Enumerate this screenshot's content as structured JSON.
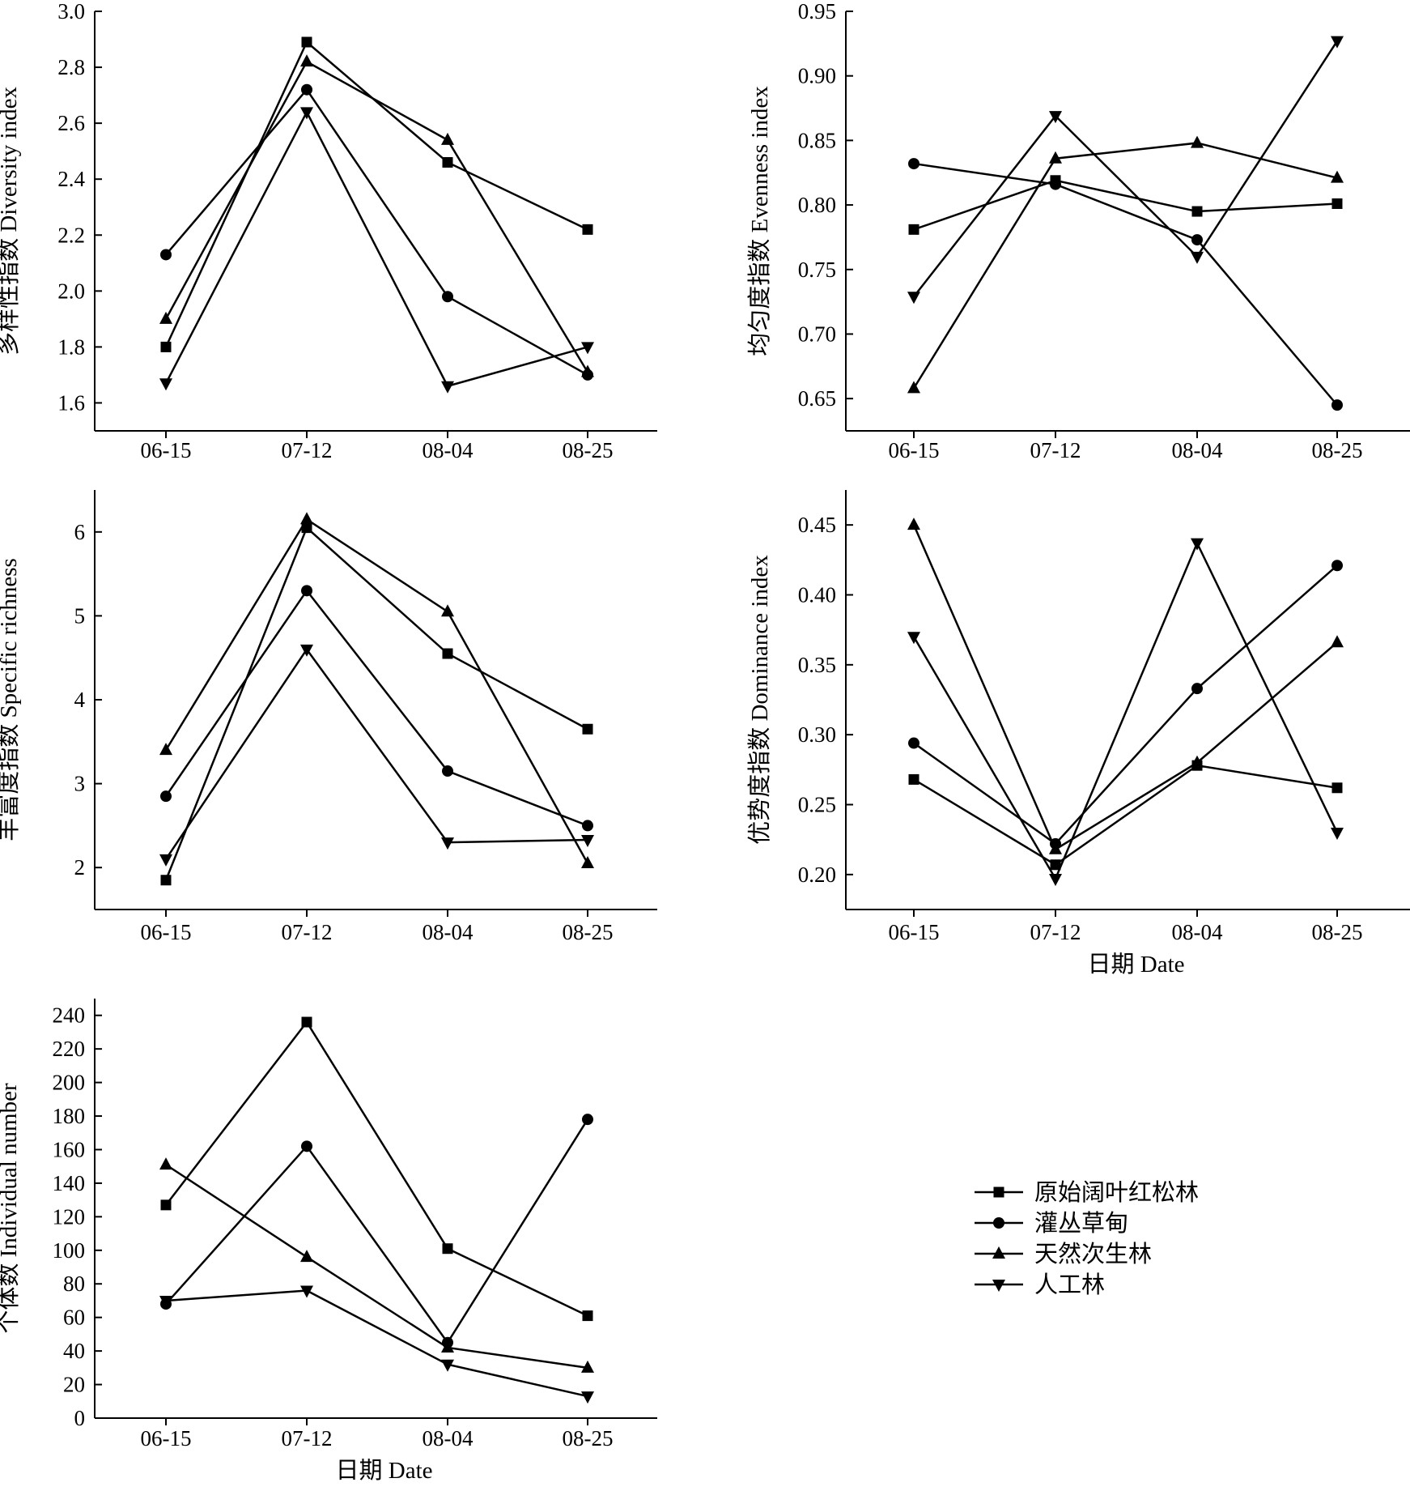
{
  "markers": [
    "square",
    "circle",
    "triangle-up",
    "triangle-down"
  ],
  "legend": {
    "position": "bottom-right",
    "entries": [
      "原始阔叶红松林",
      "灌丛草甸",
      "天然次生林",
      "人工林"
    ]
  },
  "chart_data": [
    {
      "type": "line",
      "categories": [
        "06-15",
        "07-12",
        "08-04",
        "08-25"
      ],
      "ylabel": "多样性指数 Diversity index",
      "xlabel": "",
      "ylim": [
        1.5,
        3.0
      ],
      "yticks": [
        1.6,
        1.8,
        2.0,
        2.2,
        2.4,
        2.6,
        2.8,
        3.0
      ],
      "ytick_decimals": 1,
      "series": [
        {
          "name": "原始阔叶红松林",
          "values": [
            1.8,
            2.89,
            2.46,
            2.22
          ]
        },
        {
          "name": "灌丛草甸",
          "values": [
            2.13,
            2.72,
            1.98,
            1.7
          ]
        },
        {
          "name": "天然次生林",
          "values": [
            1.9,
            2.82,
            2.54,
            1.71
          ]
        },
        {
          "name": "人工林",
          "values": [
            1.67,
            2.64,
            1.66,
            1.8
          ]
        }
      ]
    },
    {
      "type": "line",
      "categories": [
        "06-15",
        "07-12",
        "08-04",
        "08-25"
      ],
      "ylabel": "均匀度指数 Evenness index",
      "xlabel": "",
      "ylim": [
        0.625,
        0.95
      ],
      "yticks": [
        0.65,
        0.7,
        0.75,
        0.8,
        0.85,
        0.9,
        0.95
      ],
      "ytick_decimals": 2,
      "series": [
        {
          "name": "原始阔叶红松林",
          "values": [
            0.781,
            0.819,
            0.795,
            0.801
          ]
        },
        {
          "name": "灌丛草甸",
          "values": [
            0.832,
            0.816,
            0.773,
            0.645
          ]
        },
        {
          "name": "天然次生林",
          "values": [
            0.658,
            0.836,
            0.848,
            0.821
          ]
        },
        {
          "name": "人工林",
          "values": [
            0.729,
            0.869,
            0.76,
            0.927
          ]
        }
      ]
    },
    {
      "type": "line",
      "categories": [
        "06-15",
        "07-12",
        "08-04",
        "08-25"
      ],
      "ylabel": "丰富度指数 Specific richness",
      "xlabel": "",
      "ylim": [
        1.5,
        6.5
      ],
      "yticks": [
        2,
        3,
        4,
        5,
        6
      ],
      "ytick_decimals": 0,
      "series": [
        {
          "name": "原始阔叶红松林",
          "values": [
            1.85,
            6.05,
            4.55,
            3.65
          ]
        },
        {
          "name": "灌丛草甸",
          "values": [
            2.85,
            5.3,
            3.15,
            2.5
          ]
        },
        {
          "name": "天然次生林",
          "values": [
            3.4,
            6.15,
            5.05,
            2.05
          ]
        },
        {
          "name": "人工林",
          "values": [
            2.1,
            4.6,
            2.3,
            2.33
          ]
        }
      ]
    },
    {
      "type": "line",
      "categories": [
        "06-15",
        "07-12",
        "08-04",
        "08-25"
      ],
      "ylabel": "优势度指数 Dominance index",
      "xlabel": "日期 Date",
      "ylim": [
        0.175,
        0.475
      ],
      "yticks": [
        0.2,
        0.25,
        0.3,
        0.35,
        0.4,
        0.45
      ],
      "ytick_decimals": 2,
      "series": [
        {
          "name": "原始阔叶红松林",
          "values": [
            0.268,
            0.207,
            0.278,
            0.262
          ]
        },
        {
          "name": "灌丛草甸",
          "values": [
            0.294,
            0.222,
            0.333,
            0.421
          ]
        },
        {
          "name": "天然次生林",
          "values": [
            0.45,
            0.218,
            0.28,
            0.366
          ]
        },
        {
          "name": "人工林",
          "values": [
            0.37,
            0.197,
            0.437,
            0.23
          ]
        }
      ]
    },
    {
      "type": "line",
      "categories": [
        "06-15",
        "07-12",
        "08-04",
        "08-25"
      ],
      "ylabel": "个体数 Individual number",
      "xlabel": "日期 Date",
      "ylim": [
        0,
        250
      ],
      "yticks": [
        0,
        20,
        40,
        60,
        80,
        100,
        120,
        140,
        160,
        180,
        200,
        220,
        240
      ],
      "ytick_decimals": 0,
      "series": [
        {
          "name": "原始阔叶红松林",
          "values": [
            127,
            236,
            101,
            61
          ]
        },
        {
          "name": "灌丛草甸",
          "values": [
            68,
            162,
            45,
            178
          ]
        },
        {
          "name": "天然次生林",
          "values": [
            151,
            96,
            42,
            30
          ]
        },
        {
          "name": "人工林",
          "values": [
            70,
            76,
            32,
            13
          ]
        }
      ]
    }
  ]
}
